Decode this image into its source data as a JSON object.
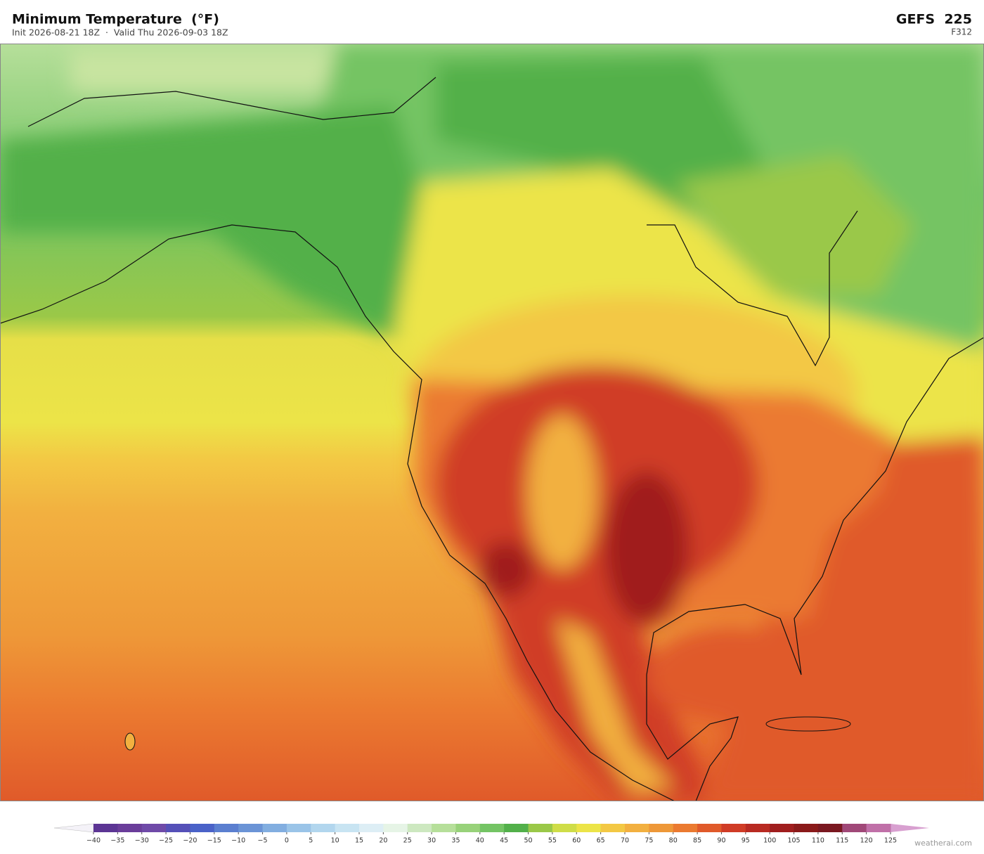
{
  "header": {
    "title": "Minimum Temperature  (°F)",
    "subtitle": "Init 2026-08-21 18Z  ·  Valid Thu 2026-09-03 18Z",
    "model": "GEFS  225",
    "forecast_hour": "F312"
  },
  "colorbar": {
    "ticks": [
      {
        "value": -40,
        "label": "−40"
      },
      {
        "value": -35,
        "label": "−35"
      },
      {
        "value": -30,
        "label": "−30"
      },
      {
        "value": -25,
        "label": "−25"
      },
      {
        "value": -20,
        "label": "−20"
      },
      {
        "value": -15,
        "label": "−15"
      },
      {
        "value": -10,
        "label": "−10"
      },
      {
        "value": -5,
        "label": "−5"
      },
      0,
      5,
      10,
      15,
      20,
      25,
      30,
      35,
      40,
      45,
      50,
      55,
      60,
      65,
      70,
      75,
      80,
      85,
      90,
      95,
      100,
      105,
      110,
      115,
      120,
      125
    ],
    "colors": [
      "#5c3594",
      "#6a3d9a",
      "#6f4aa8",
      "#5550b8",
      "#4a62c8",
      "#5b7fd0",
      "#6b94d6",
      "#82aee0",
      "#9ac4e8",
      "#b2d6ee",
      "#c8e4f2",
      "#ddeef5",
      "#e6f4e6",
      "#cde8c0",
      "#b6df9a",
      "#98d27a",
      "#74c464",
      "#52b04a",
      "#9ac848",
      "#cfdd48",
      "#ece448",
      "#f3c844",
      "#f2b040",
      "#ee9838",
      "#eb7a30",
      "#e05a2a",
      "#d03c26",
      "#b82a22",
      "#a01e1e",
      "#8a1a1a",
      "#7a1820",
      "#a04878",
      "#c070a8"
    ],
    "extend_min_color": "#f4f2f8",
    "extend_max_color": "#d8a0d0"
  },
  "credit": "weatherai.com"
}
